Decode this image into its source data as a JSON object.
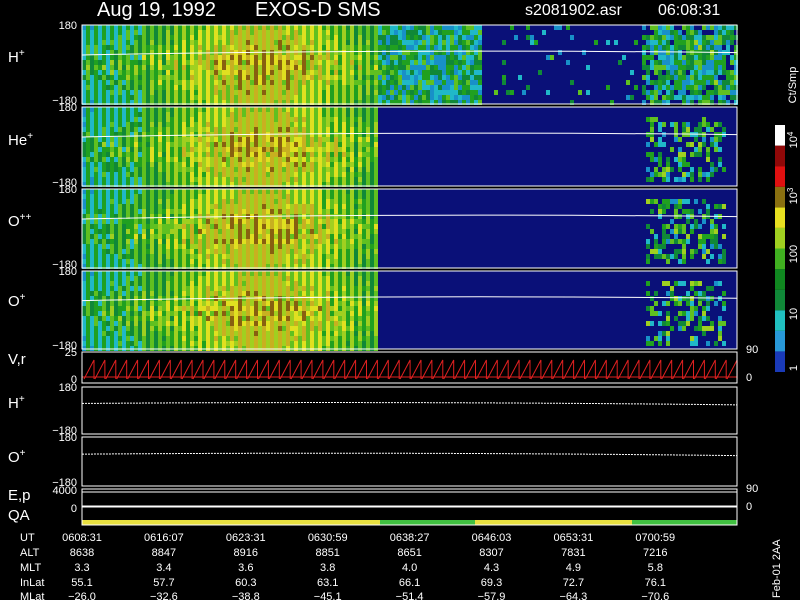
{
  "header": {
    "date": "Aug 19, 1992",
    "instrument": "EXOS-D SMS",
    "file": "s2081902.asr",
    "time": "06:08:31"
  },
  "panels": [
    {
      "symbol": "H",
      "charge": "+",
      "ticks_left": [
        "180",
        "−180"
      ],
      "ticks_right": []
    },
    {
      "symbol": "He",
      "charge": "+",
      "ticks_left": [
        "180",
        "−180"
      ],
      "ticks_right": []
    },
    {
      "symbol": "O",
      "charge": "++",
      "ticks_left": [
        "180",
        "−180"
      ],
      "ticks_right": []
    },
    {
      "symbol": "O",
      "charge": "+",
      "ticks_left": [
        "180",
        "−180"
      ],
      "ticks_right": []
    },
    {
      "symbol": "V,r",
      "charge": null,
      "ticks_left": [
        "25",
        "0"
      ],
      "ticks_right": [
        "90",
        "0"
      ]
    },
    {
      "symbol": "H",
      "charge": "+",
      "ticks_left": [
        "180",
        "−180"
      ],
      "ticks_right": []
    },
    {
      "symbol": "O",
      "charge": "+",
      "ticks_left": [
        "180",
        "−180"
      ],
      "ticks_right": []
    },
    {
      "symbol": "E,p",
      "charge": null,
      "ticks_left": [
        "4000"
      ],
      "ticks_right": [
        "90"
      ]
    },
    {
      "symbol": "QA",
      "charge": null,
      "ticks_left": [
        "0"
      ],
      "ticks_right": [
        "0"
      ]
    }
  ],
  "colorbar": {
    "unit": "Ct/Smp",
    "labels": [
      {
        "base": "1",
        "exp": null
      },
      {
        "base": "10",
        "exp": null
      },
      {
        "base": "100",
        "exp": null
      },
      {
        "base": "10",
        "exp": "3"
      },
      {
        "base": "10",
        "exp": "4"
      }
    ]
  },
  "footer": {
    "rows": [
      {
        "label": "UT",
        "values": [
          "0608:31",
          "0616:07",
          "0623:31",
          "0630:59",
          "0638:27",
          "0646:03",
          "0653:31",
          "0700:59"
        ]
      },
      {
        "label": "ALT",
        "values": [
          "8638",
          "8847",
          "8916",
          "8851",
          "8651",
          "8307",
          "7831",
          "7216"
        ]
      },
      {
        "label": "MLT",
        "values": [
          "3.3",
          "3.4",
          "3.6",
          "3.8",
          "4.0",
          "4.3",
          "4.9",
          "5.8"
        ]
      },
      {
        "label": "InLat",
        "values": [
          "55.1",
          "57.7",
          "60.3",
          "63.1",
          "66.1",
          "69.3",
          "72.7",
          "76.1"
        ]
      },
      {
        "label": "MLat",
        "values": [
          "−26.0",
          "−32.6",
          "−38.8",
          "−45.1",
          "−51.4",
          "−57.9",
          "−64.3",
          "−70.6"
        ]
      }
    ],
    "stamp": "Feb-01 2AA"
  }
}
